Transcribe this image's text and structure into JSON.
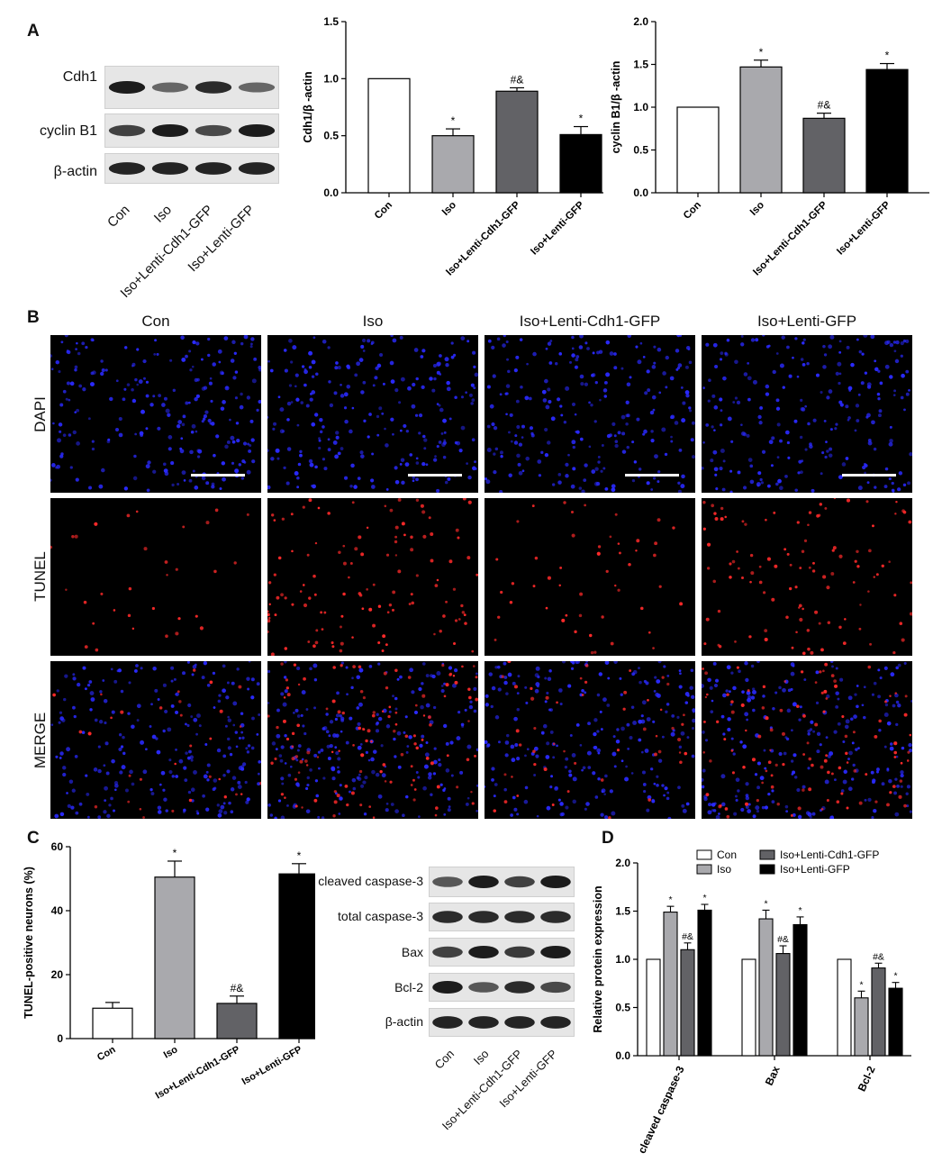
{
  "panels": {
    "a": "A",
    "b": "B",
    "c": "C",
    "d": "D"
  },
  "groups": [
    "Con",
    "Iso",
    "Iso+Lenti-Cdh1-GFP",
    "Iso+Lenti-GFP"
  ],
  "blot_a": {
    "rows": [
      "Cdh1",
      "cyclin B1",
      "β-actin"
    ],
    "lanes": [
      "Con",
      "Iso",
      "Iso+Lenti-Cdh1-GFP",
      "Iso+Lenti-GFP"
    ],
    "intensities": [
      [
        1.0,
        0.5,
        0.9,
        0.5
      ],
      [
        0.75,
        1.0,
        0.7,
        1.0
      ],
      [
        0.95,
        0.95,
        0.95,
        0.95
      ]
    ]
  },
  "blot_c": {
    "rows": [
      "cleaved caspase-3",
      "total caspase-3",
      "Bax",
      "Bcl-2",
      "β-actin"
    ],
    "lanes": [
      "Con",
      "Iso",
      "Iso+Lenti-Cdh1-GFP",
      "Iso+Lenti-GFP"
    ],
    "intensities": [
      [
        0.6,
        1.0,
        0.75,
        1.0
      ],
      [
        0.9,
        0.9,
        0.9,
        0.9
      ],
      [
        0.75,
        1.0,
        0.8,
        1.0
      ],
      [
        1.0,
        0.6,
        0.9,
        0.7
      ],
      [
        0.95,
        0.95,
        0.95,
        0.95
      ]
    ]
  },
  "micrographs": {
    "columns": [
      "Con",
      "Iso",
      "Iso+Lenti-Cdh1-GFP",
      "Iso+Lenti-GFP"
    ],
    "rows": [
      "DAPI",
      "TUNEL",
      "MERGE"
    ],
    "tunel_density": [
      0.2,
      1.0,
      0.35,
      0.9
    ],
    "colors": {
      "background": "#000000",
      "dapi": "#2a2aff",
      "tunel": "#ff2a2a",
      "scale_bar": "#ffffff"
    }
  },
  "chart_data": [
    {
      "id": "cdh1",
      "type": "bar",
      "categories": [
        "Con",
        "Iso",
        "Iso+Lenti-Cdh1-GFP",
        "Iso+Lenti-GFP"
      ],
      "values": [
        1.0,
        0.5,
        0.89,
        0.51
      ],
      "errors": [
        0,
        0.06,
        0.03,
        0.07
      ],
      "annotations": [
        "",
        "*",
        "#&",
        "*"
      ],
      "fills": [
        "#ffffff",
        "#a9a9ad",
        "#626266",
        "#000000"
      ],
      "ylabel": "Cdh1/β -actin",
      "ylim": [
        0,
        1.5
      ],
      "yticks": [
        "0.0",
        "0.5",
        "1.0",
        "1.5"
      ]
    },
    {
      "id": "cyclinb1",
      "type": "bar",
      "categories": [
        "Con",
        "Iso",
        "Iso+Lenti-Cdh1-GFP",
        "Iso+Lenti-GFP"
      ],
      "values": [
        1.0,
        1.47,
        0.87,
        1.44
      ],
      "errors": [
        0,
        0.08,
        0.06,
        0.07
      ],
      "annotations": [
        "",
        "*",
        "#&",
        "*"
      ],
      "fills": [
        "#ffffff",
        "#a9a9ad",
        "#626266",
        "#000000"
      ],
      "ylabel": "cyclin B1/β -actin",
      "ylim": [
        0,
        2.0
      ],
      "yticks": [
        "0.0",
        "0.5",
        "1.0",
        "1.5",
        "2.0"
      ]
    },
    {
      "id": "tunel",
      "type": "bar",
      "categories": [
        "Con",
        "Iso",
        "Iso+Lenti-Cdh1-GFP",
        "Iso+Lenti-GFP"
      ],
      "values": [
        9.5,
        50.5,
        11.0,
        51.5
      ],
      "errors": [
        1.8,
        5.0,
        2.3,
        3.2
      ],
      "annotations": [
        "",
        "*",
        "#&",
        "*"
      ],
      "fills": [
        "#ffffff",
        "#a9a9ad",
        "#626266",
        "#000000"
      ],
      "ylabel": "TUNEL-positive neurons (%)",
      "ylim": [
        0,
        60
      ],
      "yticks": [
        "0",
        "20",
        "40",
        "60"
      ]
    },
    {
      "id": "protein",
      "type": "bar",
      "categories": [
        "cleaved caspase-3",
        "Bax",
        "Bcl-2"
      ],
      "series": [
        {
          "name": "Con",
          "values": [
            1.0,
            1.0,
            1.0
          ],
          "errors": [
            0,
            0,
            0
          ],
          "annotations": [
            "",
            "",
            ""
          ],
          "fill": "#ffffff"
        },
        {
          "name": "Iso",
          "values": [
            1.49,
            1.42,
            0.6
          ],
          "errors": [
            0.06,
            0.09,
            0.07
          ],
          "annotations": [
            "*",
            "*",
            "*"
          ],
          "fill": "#a9a9ad"
        },
        {
          "name": "Iso+Lenti-Cdh1-GFP",
          "values": [
            1.1,
            1.06,
            0.91
          ],
          "errors": [
            0.07,
            0.08,
            0.05
          ],
          "annotations": [
            "#&",
            "#&",
            "#&"
          ],
          "fill": "#626266"
        },
        {
          "name": "Iso+Lenti-GFP",
          "values": [
            1.51,
            1.36,
            0.7
          ],
          "errors": [
            0.06,
            0.08,
            0.06
          ],
          "annotations": [
            "*",
            "*",
            "*"
          ],
          "fill": "#000000"
        }
      ],
      "ylabel": "Relative protein expression",
      "ylim": [
        0,
        2.0
      ],
      "yticks": [
        "0.0",
        "0.5",
        "1.0",
        "1.5",
        "2.0"
      ],
      "legend": "top"
    }
  ]
}
